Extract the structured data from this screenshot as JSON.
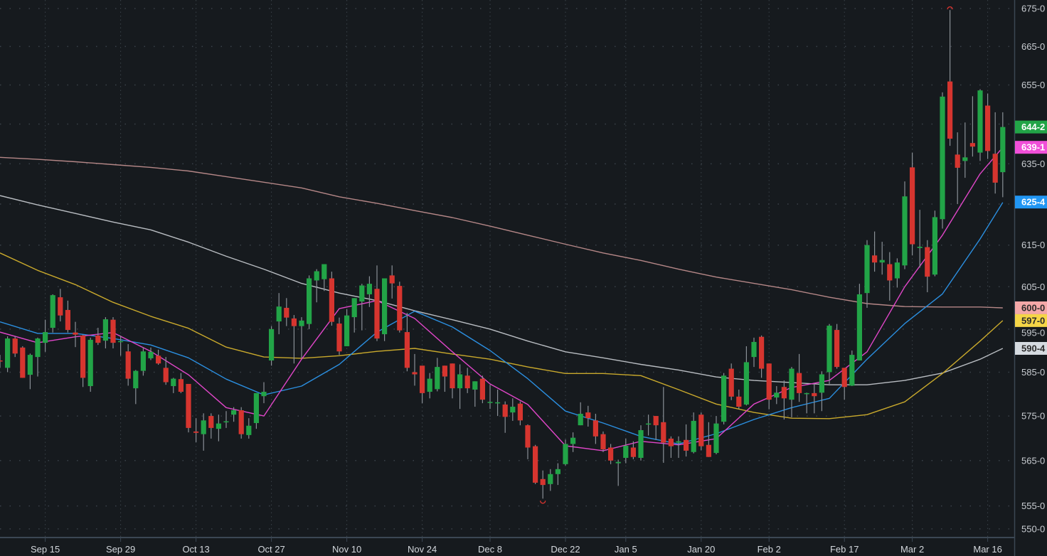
{
  "chart_data": {
    "type": "candlestick",
    "scale": "log",
    "ylim": [
      548,
      677
    ],
    "grid": true,
    "colors": {
      "background": "#161a1e",
      "up": "#22a447",
      "down": "#d6352f",
      "wick": "#8a9096",
      "grid": "#3a4149",
      "axis": "#3b4753"
    },
    "y_ticks": [
      {
        "value": 675,
        "label": "675-0"
      },
      {
        "value": 665,
        "label": "665-0"
      },
      {
        "value": 655,
        "label": "655-0"
      },
      {
        "value": 645,
        "label": "645-0"
      },
      {
        "value": 635,
        "label": "635-0"
      },
      {
        "value": 625,
        "label": "625-0"
      },
      {
        "value": 615,
        "label": "615-0"
      },
      {
        "value": 605,
        "label": "605-0"
      },
      {
        "value": 595,
        "label": "595-0"
      },
      {
        "value": 585,
        "label": "585-0"
      },
      {
        "value": 575,
        "label": "575-0"
      },
      {
        "value": 565,
        "label": "565-0"
      },
      {
        "value": 555,
        "label": "555-0"
      },
      {
        "value": 550,
        "label": "550-0"
      }
    ],
    "x_ticks": [
      "Sep 15",
      "Sep 29",
      "Oct 13",
      "Oct 27",
      "Nov 10",
      "Nov 24",
      "Dec 8",
      "Dec 22",
      "Jan 5",
      "Jan 20",
      "Feb 2",
      "Feb 17",
      "Mar 2",
      "Mar 16"
    ],
    "candle_fields": [
      "date",
      "open",
      "high",
      "low",
      "close"
    ],
    "candles": [
      [
        "Sep 5",
        587.7,
        589,
        586,
        587.5
      ],
      [
        "Sep 8",
        586,
        593.3,
        585,
        592.8
      ],
      [
        "Sep 9",
        592.8,
        593.3,
        588.5,
        589.3
      ],
      [
        "Sep 10",
        590.7,
        591,
        583.7,
        583.7
      ],
      [
        "Sep 11",
        584.4,
        589.3,
        581.1,
        589
      ],
      [
        "Sep 12",
        588.5,
        593,
        584,
        592.8
      ],
      [
        "Sep 15",
        591.8,
        597.2,
        589.7,
        594.3
      ],
      [
        "Sep 16",
        595.3,
        603.2,
        594.2,
        603
      ],
      [
        "Sep 17",
        602.5,
        604.5,
        596.8,
        598.2
      ],
      [
        "Sep 18",
        599.5,
        601.7,
        594.2,
        594.8
      ],
      [
        "Sep 19",
        594.2,
        596.7,
        590.8,
        593.7
      ],
      [
        "Sep 22",
        593.5,
        593.7,
        581.6,
        583.7
      ],
      [
        "Sep 23",
        581.8,
        593,
        580.5,
        592.5
      ],
      [
        "Sep 24",
        593.5,
        595.3,
        591.3,
        591.8
      ],
      [
        "Sep 25",
        592.3,
        597.8,
        590.5,
        597.3
      ],
      [
        "Sep 26",
        597.2,
        597.8,
        590.5,
        591.8
      ],
      [
        "Sep 29",
        592,
        593.5,
        588.8,
        592.2
      ],
      [
        "Sep 30",
        589.8,
        591.5,
        581.9,
        583.5
      ],
      [
        "Oct 1",
        581.3,
        585.5,
        577.7,
        585.3
      ],
      [
        "Oct 2",
        585.3,
        590.8,
        584.2,
        589.8
      ],
      [
        "Oct 3",
        588.2,
        590.7,
        587.8,
        589.7
      ],
      [
        "Oct 6",
        588.8,
        590.2,
        586.7,
        587
      ],
      [
        "Oct 7",
        586,
        588.5,
        582.1,
        582.7
      ],
      [
        "Oct 8",
        581.8,
        583.7,
        580.2,
        583.5
      ],
      [
        "Oct 9",
        583.4,
        584.8,
        580.2,
        580.5
      ],
      [
        "Oct 10",
        582.3,
        582.3,
        571.3,
        572.3
      ],
      [
        "Oct 13",
        571.5,
        574.5,
        569.1,
        571.2
      ],
      [
        "Oct 14",
        570.9,
        575.6,
        567.2,
        574
      ],
      [
        "Oct 15",
        575,
        575.6,
        569.9,
        572.3
      ],
      [
        "Oct 16",
        572.1,
        575.3,
        569.3,
        573.3
      ],
      [
        "Oct 17",
        573.7,
        576.1,
        572.3,
        573.8
      ],
      [
        "Oct 20",
        575.3,
        577,
        573.7,
        576.3
      ],
      [
        "Oct 21",
        576.3,
        577,
        569.9,
        570.9
      ],
      [
        "Oct 22",
        570.7,
        574.5,
        569.9,
        572.8
      ],
      [
        "Oct 23",
        573.4,
        580.2,
        572.1,
        580.2
      ],
      [
        "Oct 24",
        579.5,
        582.7,
        577.9,
        580.5
      ],
      [
        "Oct 27",
        587.7,
        595.7,
        586.5,
        595
      ],
      [
        "Oct 28",
        596.8,
        603.5,
        593.8,
        600.3
      ],
      [
        "Oct 29",
        600,
        602.3,
        595.7,
        597.7
      ],
      [
        "Oct 30",
        597.5,
        598.3,
        587,
        595.7
      ],
      [
        "Oct 31",
        595.7,
        597.8,
        588.3,
        597
      ],
      [
        "Nov 3",
        596.2,
        607.7,
        595,
        607
      ],
      [
        "Nov 4",
        606.5,
        609.2,
        601.3,
        608.7
      ],
      [
        "Nov 5",
        606.8,
        610.4,
        604,
        610.4
      ],
      [
        "Nov 6",
        607,
        608.6,
        595.8,
        596.7
      ],
      [
        "Nov 7",
        596.3,
        597.7,
        589,
        589.8
      ],
      [
        "Nov 10",
        591,
        599.7,
        591,
        598.2
      ],
      [
        "Nov 11",
        597.8,
        602.3,
        594.2,
        602.3
      ],
      [
        "Nov 12",
        601.5,
        605.7,
        594.7,
        605.3
      ],
      [
        "Nov 13",
        603.2,
        607.5,
        600.2,
        605.7
      ],
      [
        "Nov 14",
        604.5,
        610.1,
        592.2,
        592.8
      ],
      [
        "Nov 17",
        593.8,
        607,
        592.2,
        607
      ],
      [
        "Nov 18",
        607.7,
        610.1,
        602.2,
        605.8
      ],
      [
        "Nov 19",
        605.2,
        606.2,
        594.2,
        594.7
      ],
      [
        "Nov 20",
        594.3,
        598.8,
        585.2,
        586
      ],
      [
        "Nov 21",
        585,
        589.2,
        581.9,
        584.5
      ],
      [
        "Nov 24",
        586.5,
        586.5,
        577.9,
        580.2
      ],
      [
        "Nov 25",
        580.5,
        584.8,
        579,
        583.5
      ],
      [
        "Nov 26",
        581.1,
        588.3,
        580.6,
        586.2
      ],
      [
        "Nov 28",
        586.5,
        586.5,
        580.5,
        584
      ],
      [
        "Dec 1",
        587,
        587,
        579,
        581.3
      ],
      [
        "Dec 2",
        581.3,
        586.8,
        576.6,
        584.5
      ],
      [
        "Dec 3",
        584.2,
        586,
        580.2,
        581.3
      ],
      [
        "Dec 4",
        581,
        582.9,
        577.1,
        582.9
      ],
      [
        "Dec 5",
        583.5,
        584.2,
        577.9,
        578.7
      ],
      [
        "Dec 8",
        578,
        582.1,
        576.6,
        578.2
      ],
      [
        "Dec 9",
        578.1,
        581,
        575,
        578.1
      ],
      [
        "Dec 10",
        577.6,
        578.3,
        571.2,
        574.8
      ],
      [
        "Dec 11",
        575.8,
        579,
        573.9,
        577.1
      ],
      [
        "Dec 12",
        577.8,
        578.3,
        572.9,
        574
      ],
      [
        "Dec 15",
        572.9,
        573.1,
        565.3,
        567.9
      ],
      [
        "Dec 16",
        568.2,
        568.5,
        559.8,
        560.1
      ],
      [
        "Dec 17",
        560.9,
        562.8,
        556.6,
        559.6
      ],
      [
        "Dec 18",
        559.8,
        563.1,
        558.3,
        562
      ],
      [
        "Dec 19",
        562,
        564.4,
        559.6,
        563.1
      ],
      [
        "Dec 22",
        564.2,
        569.7,
        563.9,
        568.7
      ],
      [
        "Dec 23",
        568.7,
        571.3,
        566.9,
        570.1
      ],
      [
        "Dec 24",
        572.9,
        578.1,
        572.9,
        575.5
      ],
      [
        "Dec 26",
        575.8,
        577.3,
        572.6,
        574.5
      ],
      [
        "Dec 29",
        574,
        575.5,
        568.7,
        570.4
      ],
      [
        "Dec 30",
        570.9,
        571.5,
        566.9,
        567.5
      ],
      [
        "Dec 31",
        567.9,
        568.7,
        564.2,
        565
      ],
      [
        "Jan 2",
        564.4,
        565.2,
        559.4,
        564.7
      ],
      [
        "Jan 5",
        565.6,
        569.9,
        564.4,
        568.3
      ],
      [
        "Jan 6",
        567.9,
        569.3,
        565.3,
        565.8
      ],
      [
        "Jan 7",
        565.6,
        572.9,
        565,
        571.8
      ],
      [
        "Jan 8",
        573.1,
        575.3,
        570.6,
        573.3
      ],
      [
        "Jan 9",
        575,
        575,
        569.6,
        572.9
      ],
      [
        "Jan 12",
        573.6,
        581.6,
        564.5,
        569
      ],
      [
        "Jan 13",
        569.9,
        570.4,
        565.6,
        568.2
      ],
      [
        "Jan 14",
        569,
        570.4,
        565.6,
        569.3
      ],
      [
        "Jan 15",
        569.6,
        573.1,
        565.9,
        567.2
      ],
      [
        "Jan 16",
        566.9,
        575.8,
        566.6,
        573.9
      ],
      [
        "Jan 20",
        575.3,
        575.8,
        567.3,
        568.2
      ],
      [
        "Jan 21",
        568.5,
        573.6,
        565.8,
        565.8
      ],
      [
        "Jan 22",
        566.7,
        575,
        566.4,
        573.3
      ],
      [
        "Jan 23",
        573.7,
        584.8,
        573.1,
        584.2
      ],
      [
        "Jan 26",
        585.8,
        587,
        578.6,
        579.4
      ],
      [
        "Jan 27",
        579.4,
        581,
        576.6,
        577.1
      ],
      [
        "Jan 28",
        577.6,
        591,
        577.4,
        587.3
      ],
      [
        "Jan 29",
        588.5,
        593,
        586.2,
        592
      ],
      [
        "Jan 30",
        593.2,
        593.5,
        583.7,
        585.8
      ],
      [
        "Feb 2",
        587,
        587,
        576.5,
        578.7
      ],
      [
        "Feb 3",
        579.2,
        581.8,
        577.7,
        580.3
      ],
      [
        "Feb 4",
        581.6,
        583.1,
        574.2,
        579
      ],
      [
        "Feb 5",
        578.7,
        586.2,
        574.7,
        585.8
      ],
      [
        "Feb 6",
        584.8,
        589.2,
        578.2,
        580.2
      ],
      [
        "Feb 9",
        580.2,
        580.3,
        575.6,
        580.2
      ],
      [
        "Feb 10",
        580.2,
        582.3,
        575.6,
        579.5
      ],
      [
        "Feb 11",
        580.3,
        585.2,
        576.1,
        584.5
      ],
      [
        "Feb 12",
        585,
        596.2,
        582.3,
        595.8
      ],
      [
        "Feb 13",
        594.8,
        596.2,
        585.8,
        586.2
      ],
      [
        "Feb 17",
        586,
        586,
        578.7,
        581.6
      ],
      [
        "Feb 18",
        581.9,
        590,
        581.8,
        589
      ],
      [
        "Feb 19",
        587.7,
        605.7,
        587.7,
        603.2
      ],
      [
        "Feb 20",
        603.5,
        616.2,
        600,
        615
      ],
      [
        "Feb 23",
        612.5,
        618.3,
        608.6,
        610.8
      ],
      [
        "Feb 24",
        610.8,
        615.8,
        607.9,
        611.4
      ],
      [
        "Feb 25",
        610.4,
        613.3,
        601.7,
        606.5
      ],
      [
        "Feb 26",
        607,
        611.8,
        604.8,
        610.8
      ],
      [
        "Feb 27",
        610.1,
        630.6,
        609.2,
        626.9
      ],
      [
        "Mar 2",
        634.1,
        637.8,
        612.5,
        615.2
      ],
      [
        "Mar 3",
        614.3,
        623.6,
        609.6,
        614.6
      ],
      [
        "Mar 4",
        614.5,
        616.2,
        603.7,
        607.4
      ],
      [
        "Mar 5",
        607.9,
        623.4,
        607.5,
        621.8
      ],
      [
        "Mar 6",
        621.3,
        653.1,
        619,
        652
      ],
      [
        "Mar 9",
        655.9,
        674.6,
        639.5,
        641.3
      ],
      [
        "Mar 10",
        637.3,
        642.9,
        625,
        634
      ],
      [
        "Mar 11",
        635.7,
        645.4,
        631.5,
        636.6
      ],
      [
        "Mar 12",
        640.2,
        652.1,
        636.8,
        639.3
      ],
      [
        "Mar 13",
        637.8,
        653.9,
        635.7,
        653.6
      ],
      [
        "Mar 16",
        649.7,
        652.8,
        636.2,
        638.2
      ],
      [
        "Mar 17",
        637.5,
        648,
        627.6,
        630.3
      ],
      [
        "Mar 18",
        632.9,
        648,
        626.7,
        644.25
      ]
    ],
    "ma_dates": [
      "Sep 5",
      "Sep 12",
      "Sep 19",
      "Sep 26",
      "Oct 3",
      "Oct 10",
      "Oct 17",
      "Oct 24",
      "Oct 31",
      "Nov 7",
      "Nov 14",
      "Nov 21",
      "Dec 1",
      "Dec 8",
      "Dec 15",
      "Dec 22",
      "Dec 30",
      "Jan 7",
      "Jan 14",
      "Jan 22",
      "Jan 29",
      "Feb 5",
      "Feb 12",
      "Feb 20",
      "Feb 27",
      "Mar 6",
      "Mar 13",
      "Mar 18"
    ],
    "moving_averages": [
      {
        "color": "#b58787",
        "values": [
          636.6,
          636.1,
          635.5,
          634.8,
          634.1,
          633.2,
          631.8,
          630.4,
          629,
          626.8,
          625.2,
          623.4,
          621.7,
          619.6,
          617.4,
          615.2,
          613.1,
          611.3,
          609.2,
          607.3,
          605.8,
          604.3,
          602.5,
          601,
          600.3,
          600.2,
          600.2,
          600
        ]
      },
      {
        "color": "#b9bdc2",
        "values": [
          627.1,
          624.8,
          622.7,
          620.6,
          618.7,
          615.7,
          612.3,
          609.2,
          605.8,
          603.5,
          601.7,
          599.3,
          597.2,
          595,
          592.2,
          589.7,
          588.3,
          586.8,
          585.5,
          583.9,
          583.1,
          582.6,
          582.1,
          582.1,
          583.1,
          584.8,
          588,
          590.5
        ]
      },
      {
        "color": "#c9a92c",
        "values": [
          613.1,
          608.9,
          605.5,
          601.3,
          598,
          595.2,
          590.8,
          588.5,
          588.2,
          588.8,
          589.8,
          590.5,
          589.2,
          588,
          586.2,
          584.7,
          584.7,
          584.2,
          581,
          577.7,
          575.8,
          574.5,
          574.4,
          575.3,
          578.2,
          584.7,
          592.2,
          597
        ]
      },
      {
        "color": "#2b8fe0",
        "values": [
          596.7,
          594,
          594,
          592.8,
          591.3,
          588.3,
          583.4,
          579.8,
          581.8,
          586.8,
          594.3,
          599.2,
          595.5,
          590,
          583.5,
          576.1,
          573.4,
          570.4,
          568.7,
          571,
          574.2,
          576.9,
          579,
          588,
          596.3,
          603.3,
          616.5,
          625.4
        ]
      },
      {
        "color": "#e046c8",
        "values": [
          594.3,
          591.8,
          593.2,
          594.2,
          589.8,
          584.4,
          576.9,
          575,
          588,
          599.8,
          601.7,
          597.5,
          589.7,
          582.3,
          577.6,
          568.3,
          567.2,
          569.3,
          568.5,
          569.9,
          577.7,
          581.5,
          583.1,
          589.7,
          605,
          617.4,
          632.5,
          639.1
        ]
      }
    ],
    "price_labels": [
      {
        "text": "644-2",
        "value": 644.25,
        "bg": "#22a447",
        "fg": "#ffffff"
      },
      {
        "text": "639-1",
        "value": 639.125,
        "bg": "#f04fd8",
        "fg": "#ffffff"
      },
      {
        "text": "625-4",
        "value": 625.5,
        "bg": "#2196f3",
        "fg": "#ffffff"
      },
      {
        "text": "600-0",
        "value": 600,
        "bg": "#f4a8a8",
        "fg": "#2a2a2a"
      },
      {
        "text": "597-0",
        "value": 597,
        "bg": "#f5d547",
        "fg": "#2a2a2a"
      },
      {
        "text": "590-4",
        "value": 590.5,
        "bg": "#d5dae0",
        "fg": "#2a2a2a"
      }
    ],
    "markers": [
      {
        "type": "high",
        "date": "Mar 9",
        "value": 674.6
      },
      {
        "type": "low",
        "date": "Dec 17",
        "value": 556.6
      }
    ]
  }
}
